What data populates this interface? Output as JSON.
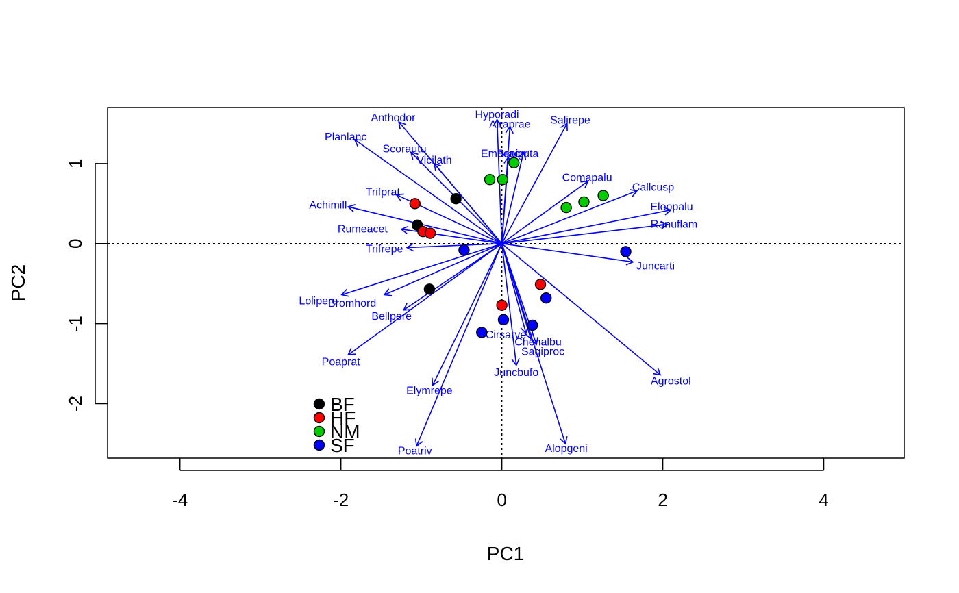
{
  "chart_data": {
    "type": "scatter",
    "subtype": "pca-biplot",
    "title": "",
    "xlabel": "PC1",
    "ylabel": "PC2",
    "xlim": [
      -4.9,
      5.0
    ],
    "ylim": [
      -2.68,
      1.7
    ],
    "x_ticks": [
      -4,
      -2,
      0,
      2,
      4
    ],
    "y_ticks": [
      -2,
      -1,
      0,
      1
    ],
    "x_tick_labels": [
      "-4",
      "-2",
      "0",
      "2",
      "4"
    ],
    "y_tick_labels": [
      "-2",
      "-1",
      "0",
      "1"
    ],
    "reference_lines": {
      "x": 0,
      "y": 0,
      "style": "dotted"
    },
    "grid": false,
    "arrow_color": "#0000ff",
    "legend_position": "bottom-left",
    "groups": [
      {
        "name": "BF",
        "color": "#000000",
        "points": [
          [
            -0.57,
            0.56
          ],
          [
            -1.05,
            0.23
          ],
          [
            -0.9,
            -0.57
          ]
        ]
      },
      {
        "name": "HF",
        "color": "#ff0000",
        "points": [
          [
            -1.08,
            0.5
          ],
          [
            -0.98,
            0.15
          ],
          [
            -0.89,
            0.13
          ],
          [
            0.48,
            -0.51
          ],
          [
            0.0,
            -0.77
          ]
        ]
      },
      {
        "name": "NM",
        "color": "#00cc00",
        "points": [
          [
            -0.15,
            0.8
          ],
          [
            0.01,
            0.8
          ],
          [
            0.15,
            1.01
          ],
          [
            0.8,
            0.45
          ],
          [
            1.02,
            0.52
          ],
          [
            1.26,
            0.6
          ]
        ]
      },
      {
        "name": "SF",
        "color": "#0000ff",
        "points": [
          [
            -0.47,
            -0.08
          ],
          [
            1.54,
            -0.1
          ],
          [
            0.55,
            -0.68
          ],
          [
            0.38,
            -1.02
          ],
          [
            0.02,
            -0.95
          ],
          [
            -0.25,
            -1.11
          ]
        ]
      }
    ],
    "loadings": [
      {
        "species": "Hyporadi",
        "x": -0.06,
        "y": 1.55,
        "label_xy": [
          -0.06,
          1.62
        ]
      },
      {
        "species": "Airaprae",
        "x": 0.1,
        "y": 1.46,
        "label_xy": [
          0.1,
          1.5
        ]
      },
      {
        "species": "Salirepe",
        "x": 0.81,
        "y": 1.5,
        "label_xy": [
          0.85,
          1.55
        ]
      },
      {
        "species": "Anthodor",
        "x": -1.28,
        "y": 1.52,
        "label_xy": [
          -1.35,
          1.58
        ]
      },
      {
        "species": "Planlanc",
        "x": -1.83,
        "y": 1.3,
        "label_xy": [
          -1.94,
          1.34
        ]
      },
      {
        "species": "Scorautu",
        "x": -1.13,
        "y": 1.14,
        "label_xy": [
          -1.21,
          1.19
        ]
      },
      {
        "species": "Vicilath",
        "x": -0.84,
        "y": 1.0,
        "label_xy": [
          -0.84,
          1.05
        ]
      },
      {
        "species": "Empenigr",
        "x": 0.08,
        "y": 1.08,
        "label_xy": [
          0.03,
          1.13
        ]
      },
      {
        "species": "Bracruta",
        "x": 0.27,
        "y": 1.14,
        "label_xy": [
          0.2,
          1.13
        ]
      },
      {
        "species": "Comapalu",
        "x": 1.07,
        "y": 0.78,
        "label_xy": [
          1.06,
          0.83
        ]
      },
      {
        "species": "Callcusp",
        "x": 1.68,
        "y": 0.66,
        "label_xy": [
          1.88,
          0.71
        ]
      },
      {
        "species": "Eleopalu",
        "x": 2.1,
        "y": 0.42,
        "label_xy": [
          2.11,
          0.47
        ]
      },
      {
        "species": "Ranuflam",
        "x": 2.06,
        "y": 0.24,
        "label_xy": [
          2.14,
          0.25
        ]
      },
      {
        "species": "Trifprat",
        "x": -1.31,
        "y": 0.61,
        "label_xy": [
          -1.48,
          0.65
        ]
      },
      {
        "species": "Achimill",
        "x": -1.91,
        "y": 0.46,
        "label_xy": [
          -2.16,
          0.49
        ]
      },
      {
        "species": "Rumeacet",
        "x": -1.25,
        "y": 0.18,
        "label_xy": [
          -1.73,
          0.19
        ]
      },
      {
        "species": "Trifrepe",
        "x": -1.18,
        "y": -0.05,
        "label_xy": [
          -1.46,
          -0.06
        ]
      },
      {
        "species": "Juncarti",
        "x": 1.63,
        "y": -0.23,
        "label_xy": [
          1.91,
          -0.27
        ]
      },
      {
        "species": "Lolipere",
        "x": -1.99,
        "y": -0.64,
        "label_xy": [
          -2.28,
          -0.71
        ]
      },
      {
        "species": "Bromhord",
        "x": -1.46,
        "y": -0.64,
        "label_xy": [
          -1.86,
          -0.74
        ]
      },
      {
        "species": "Bellpere",
        "x": -1.22,
        "y": -0.83,
        "label_xy": [
          -1.37,
          -0.9
        ]
      },
      {
        "species": "Poaprat",
        "x": -1.91,
        "y": -1.39,
        "label_xy": [
          -2.0,
          -1.47
        ]
      },
      {
        "species": "Cirsarve",
        "x": 0.3,
        "y": -1.12,
        "label_xy": [
          0.05,
          -1.13
        ]
      },
      {
        "species": "Chenalbu",
        "x": 0.36,
        "y": -1.19,
        "label_xy": [
          0.45,
          -1.22
        ]
      },
      {
        "species": "Sagiproc",
        "x": 0.43,
        "y": -1.26,
        "label_xy": [
          0.51,
          -1.34
        ]
      },
      {
        "species": "Juncbufo",
        "x": 0.18,
        "y": -1.52,
        "label_xy": [
          0.18,
          -1.6
        ]
      },
      {
        "species": "Agrostol",
        "x": 1.97,
        "y": -1.64,
        "label_xy": [
          2.1,
          -1.71
        ]
      },
      {
        "species": "Elymrepe",
        "x": -0.86,
        "y": -1.77,
        "label_xy": [
          -0.9,
          -1.83
        ]
      },
      {
        "species": "Poatriv",
        "x": -1.06,
        "y": -2.53,
        "label_xy": [
          -1.08,
          -2.58
        ]
      },
      {
        "species": "Alopgeni",
        "x": 0.79,
        "y": -2.5,
        "label_xy": [
          0.8,
          -2.55
        ]
      }
    ]
  }
}
